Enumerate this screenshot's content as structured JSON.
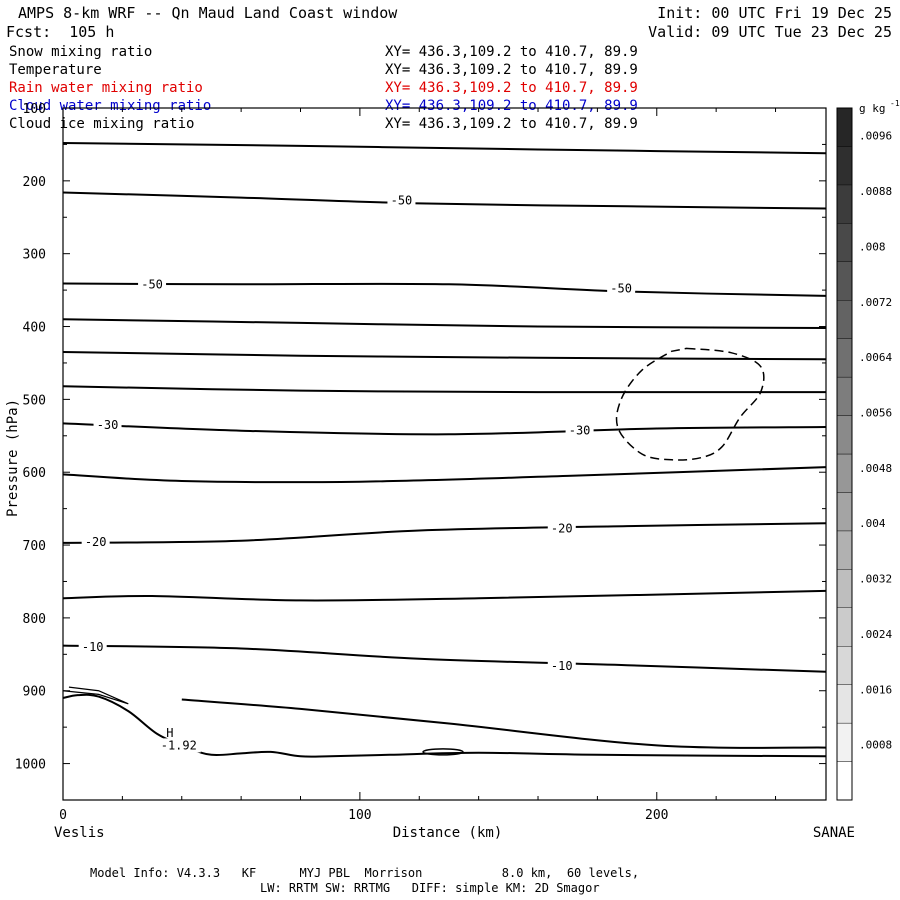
{
  "header": {
    "title": "AMPS 8-km WRF -- Qn Maud Land Coast window",
    "init": "Init: 00 UTC Fri 19 Dec 25",
    "fcst": "Fcst:  105 h",
    "valid": "Valid: 09 UTC Tue 23 Dec 25"
  },
  "fields": [
    {
      "name": "Snow mixing ratio",
      "xy": "XY= 436.3,109.2 to 410.7, 89.9",
      "color": "#000000"
    },
    {
      "name": "Temperature",
      "xy": "XY= 436.3,109.2 to 410.7, 89.9",
      "color": "#000000"
    },
    {
      "name": "Rain water mixing ratio",
      "xy": "XY= 436.3,109.2 to 410.7, 89.9",
      "color": "#e00000"
    },
    {
      "name": "Cloud water mixing ratio",
      "xy": "XY= 436.3,109.2 to 410.7, 89.9",
      "color": "#0000cc"
    },
    {
      "name": "Cloud ice mixing ratio",
      "xy": "XY= 436.3,109.2 to 410.7, 89.9",
      "color": "#000000"
    }
  ],
  "footer": {
    "line1": "Model Info: V4.3.3   KF      MYJ PBL  Morrison           8.0 km,  60 levels,",
    "line2": "LW: RRTM SW: RRTMG   DIFF: simple KM: 2D Smagor"
  },
  "chart_data": {
    "type": "line",
    "xlabel": "Distance (km)",
    "ylabel": "Pressure (hPa)",
    "x_start_label": "Veslis",
    "x_end_label": "SANAE",
    "xlim": [
      0,
      257
    ],
    "ylim": [
      1050,
      100
    ],
    "x_ticks": [
      0,
      100,
      200
    ],
    "y_ticks": [
      100,
      200,
      300,
      400,
      500,
      600,
      700,
      800,
      900,
      1000
    ],
    "isotherms": [
      {
        "x": [
          0,
          80,
          160,
          257
        ],
        "p": [
          148,
          152,
          157,
          162
        ]
      },
      {
        "x": [
          0,
          60,
          120,
          190,
          257
        ],
        "p": [
          216,
          223,
          231,
          235,
          238
        ]
      },
      {
        "x": [
          0,
          60,
          130,
          190,
          257
        ],
        "p": [
          341,
          342,
          342,
          352,
          358
        ]
      },
      {
        "x": [
          0,
          80,
          160,
          257
        ],
        "p": [
          390,
          395,
          400,
          402
        ]
      },
      {
        "x": [
          0,
          80,
          160,
          257
        ],
        "p": [
          435,
          440,
          443,
          445
        ]
      },
      {
        "x": [
          0,
          80,
          160,
          257
        ],
        "p": [
          482,
          488,
          490,
          490
        ]
      },
      {
        "x": [
          0,
          60,
          130,
          200,
          257
        ],
        "p": [
          533,
          543,
          548,
          540,
          538
        ]
      },
      {
        "x": [
          0,
          40,
          100,
          170,
          257
        ],
        "p": [
          603,
          612,
          613,
          605,
          593
        ]
      },
      {
        "x": [
          0,
          60,
          120,
          190,
          257
        ],
        "p": [
          697,
          694,
          680,
          674,
          670
        ]
      },
      {
        "x": [
          0,
          30,
          80,
          140,
          257
        ],
        "p": [
          773,
          770,
          776,
          773,
          763
        ]
      },
      {
        "x": [
          0,
          60,
          120,
          190,
          257
        ],
        "p": [
          838,
          842,
          856,
          865,
          874
        ]
      },
      {
        "x": [
          40,
          80,
          130,
          200,
          257
        ],
        "p": [
          912,
          925,
          945,
          975,
          978
        ]
      }
    ],
    "terrain": {
      "x": [
        0,
        5,
        12,
        22,
        32,
        42,
        50,
        60,
        70,
        80,
        90,
        110,
        140,
        180,
        257
      ],
      "p": [
        910,
        906,
        908,
        928,
        960,
        978,
        988,
        986,
        984,
        990,
        990,
        988,
        985,
        988,
        990
      ]
    },
    "contour_labels": [
      {
        "text": "-50",
        "x": 114,
        "p": 227
      },
      {
        "text": "-50",
        "x": 30,
        "p": 342
      },
      {
        "text": "-50",
        "x": 188,
        "p": 348
      },
      {
        "text": "-30",
        "x": 15,
        "p": 535
      },
      {
        "text": "-30",
        "x": 174,
        "p": 543
      },
      {
        "text": "-20",
        "x": 168,
        "p": 677
      },
      {
        "text": "-20",
        "x": 11,
        "p": 696
      },
      {
        "text": "-10",
        "x": 10,
        "p": 840
      },
      {
        "text": "-10",
        "x": 168,
        "p": 866
      },
      {
        "text": "H",
        "x": 36,
        "p": 958
      },
      {
        "text": "-1.92",
        "x": 39,
        "p": 975
      }
    ],
    "ice_contour": {
      "x": [
        210,
        225,
        235,
        235,
        228,
        222,
        215,
        205,
        195,
        187,
        188,
        195,
        205
      ],
      "p": [
        430,
        436,
        455,
        490,
        525,
        565,
        580,
        583,
        575,
        540,
        500,
        460,
        434
      ]
    },
    "colorbar": {
      "unit": "g kg",
      "unit_exp": "-1",
      "ticks": [
        ".0008",
        ".0016",
        ".0024",
        ".0032",
        ".004",
        ".0048",
        ".0056",
        ".0064",
        ".0072",
        ".008",
        ".0088",
        ".0096"
      ],
      "colors": [
        "#ffffff",
        "#f2f2f2",
        "#e5e5e5",
        "#d8d8d8",
        "#cbcbcb",
        "#bebebe",
        "#b1b1b1",
        "#a4a4a4",
        "#979797",
        "#8a8a8a",
        "#7d7d7d",
        "#707070",
        "#636363",
        "#565656",
        "#494949",
        "#3c3c3c",
        "#2f2f2f",
        "#262626"
      ]
    }
  }
}
